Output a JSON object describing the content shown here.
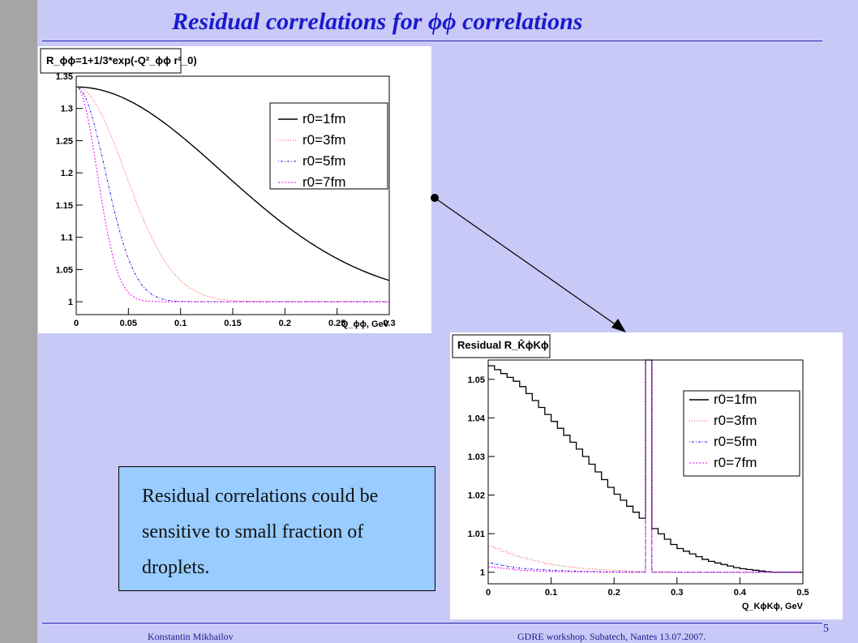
{
  "slide": {
    "title": "Residual correlations for ϕϕ correlations",
    "note": "Residual correlations could be sensitive to small fraction of droplets.",
    "footer_left": "Konstantin Mikhailov",
    "footer_right": "GDRE workshop. Subatech, Nantes 13.07.2007.",
    "page_number": "5",
    "colors": {
      "background": "#c9c9f7",
      "title": "#1a1acc",
      "note_box": "#99ccff",
      "sidebar": "#a5a5a5"
    }
  },
  "chart_data": [
    {
      "type": "line",
      "title": "R_ϕϕ=1+1/3*exp(-Q²_ϕϕ r²_0)",
      "xlabel": "Q_ϕϕ, GeV",
      "ylabel": "",
      "xlim": [
        0,
        0.3
      ],
      "ylim": [
        0.98,
        1.35
      ],
      "xticks": [
        0,
        0.05,
        0.1,
        0.15,
        0.2,
        0.25,
        0.3
      ],
      "yticks": [
        1,
        1.05,
        1.1,
        1.15,
        1.2,
        1.25,
        1.3,
        1.35
      ],
      "legend_position": "top-right",
      "series": [
        {
          "name": "r0=1fm",
          "r0": 1,
          "color": "#000000",
          "dash": ""
        },
        {
          "name": "r0=3fm",
          "r0": 3,
          "color": "#ff4040",
          "dash": "1,2"
        },
        {
          "name": "r0=5fm",
          "r0": 5,
          "color": "#2020dd",
          "dash": "1,2,3,2"
        },
        {
          "name": "r0=7fm",
          "r0": 7,
          "color": "#ee00ee",
          "dash": "2,2"
        }
      ]
    },
    {
      "type": "line",
      "title": "Residual R_K̄ϕKϕ",
      "xlabel": "Q_KϕKϕ, GeV",
      "ylabel": "",
      "xlim": [
        0,
        0.5
      ],
      "ylim": [
        0.997,
        1.055
      ],
      "xticks": [
        0,
        0.1,
        0.2,
        0.3,
        0.4,
        0.5
      ],
      "yticks": [
        1,
        1.01,
        1.02,
        1.03,
        1.04,
        1.05
      ],
      "legend_position": "top-right",
      "spike": {
        "x": [
          0.25,
          0.26
        ],
        "note": "all series exceed the top of the axis"
      },
      "series": [
        {
          "name": "r0=1fm",
          "color": "#000000",
          "dash": "",
          "x": [
            0,
            0.05,
            0.1,
            0.15,
            0.2,
            0.245,
            0.26,
            0.3,
            0.35,
            0.4,
            0.45,
            0.5
          ],
          "y": [
            1.054,
            1.049,
            1.04,
            1.031,
            1.021,
            1.014,
            1.012,
            1.0065,
            1.003,
            1.001,
            1.0,
            1.0
          ]
        },
        {
          "name": "r0=3fm",
          "color": "#ff4040",
          "dash": "1,2",
          "x": [
            0,
            0.05,
            0.1,
            0.15,
            0.2,
            0.25,
            0.3,
            0.4,
            0.5
          ],
          "y": [
            1.007,
            1.004,
            1.002,
            1.001,
            1.0005,
            1.0002,
            1.0,
            1.0,
            1.0
          ]
        },
        {
          "name": "r0=5fm",
          "color": "#2020dd",
          "dash": "1,2,3,2",
          "x": [
            0,
            0.05,
            0.1,
            0.15,
            0.2,
            0.25,
            0.3,
            0.4,
            0.5
          ],
          "y": [
            1.0025,
            1.001,
            1.0005,
            1.0002,
            1.0001,
            1.0,
            1.0,
            1.0,
            1.0
          ]
        },
        {
          "name": "r0=7fm",
          "color": "#ee00ee",
          "dash": "2,2",
          "x": [
            0,
            0.05,
            0.1,
            0.15,
            0.2,
            0.25,
            0.3,
            0.4,
            0.5
          ],
          "y": [
            1.0015,
            1.0005,
            1.0002,
            1.0001,
            1.0,
            1.0,
            1.0,
            1.0,
            1.0
          ]
        }
      ]
    }
  ]
}
